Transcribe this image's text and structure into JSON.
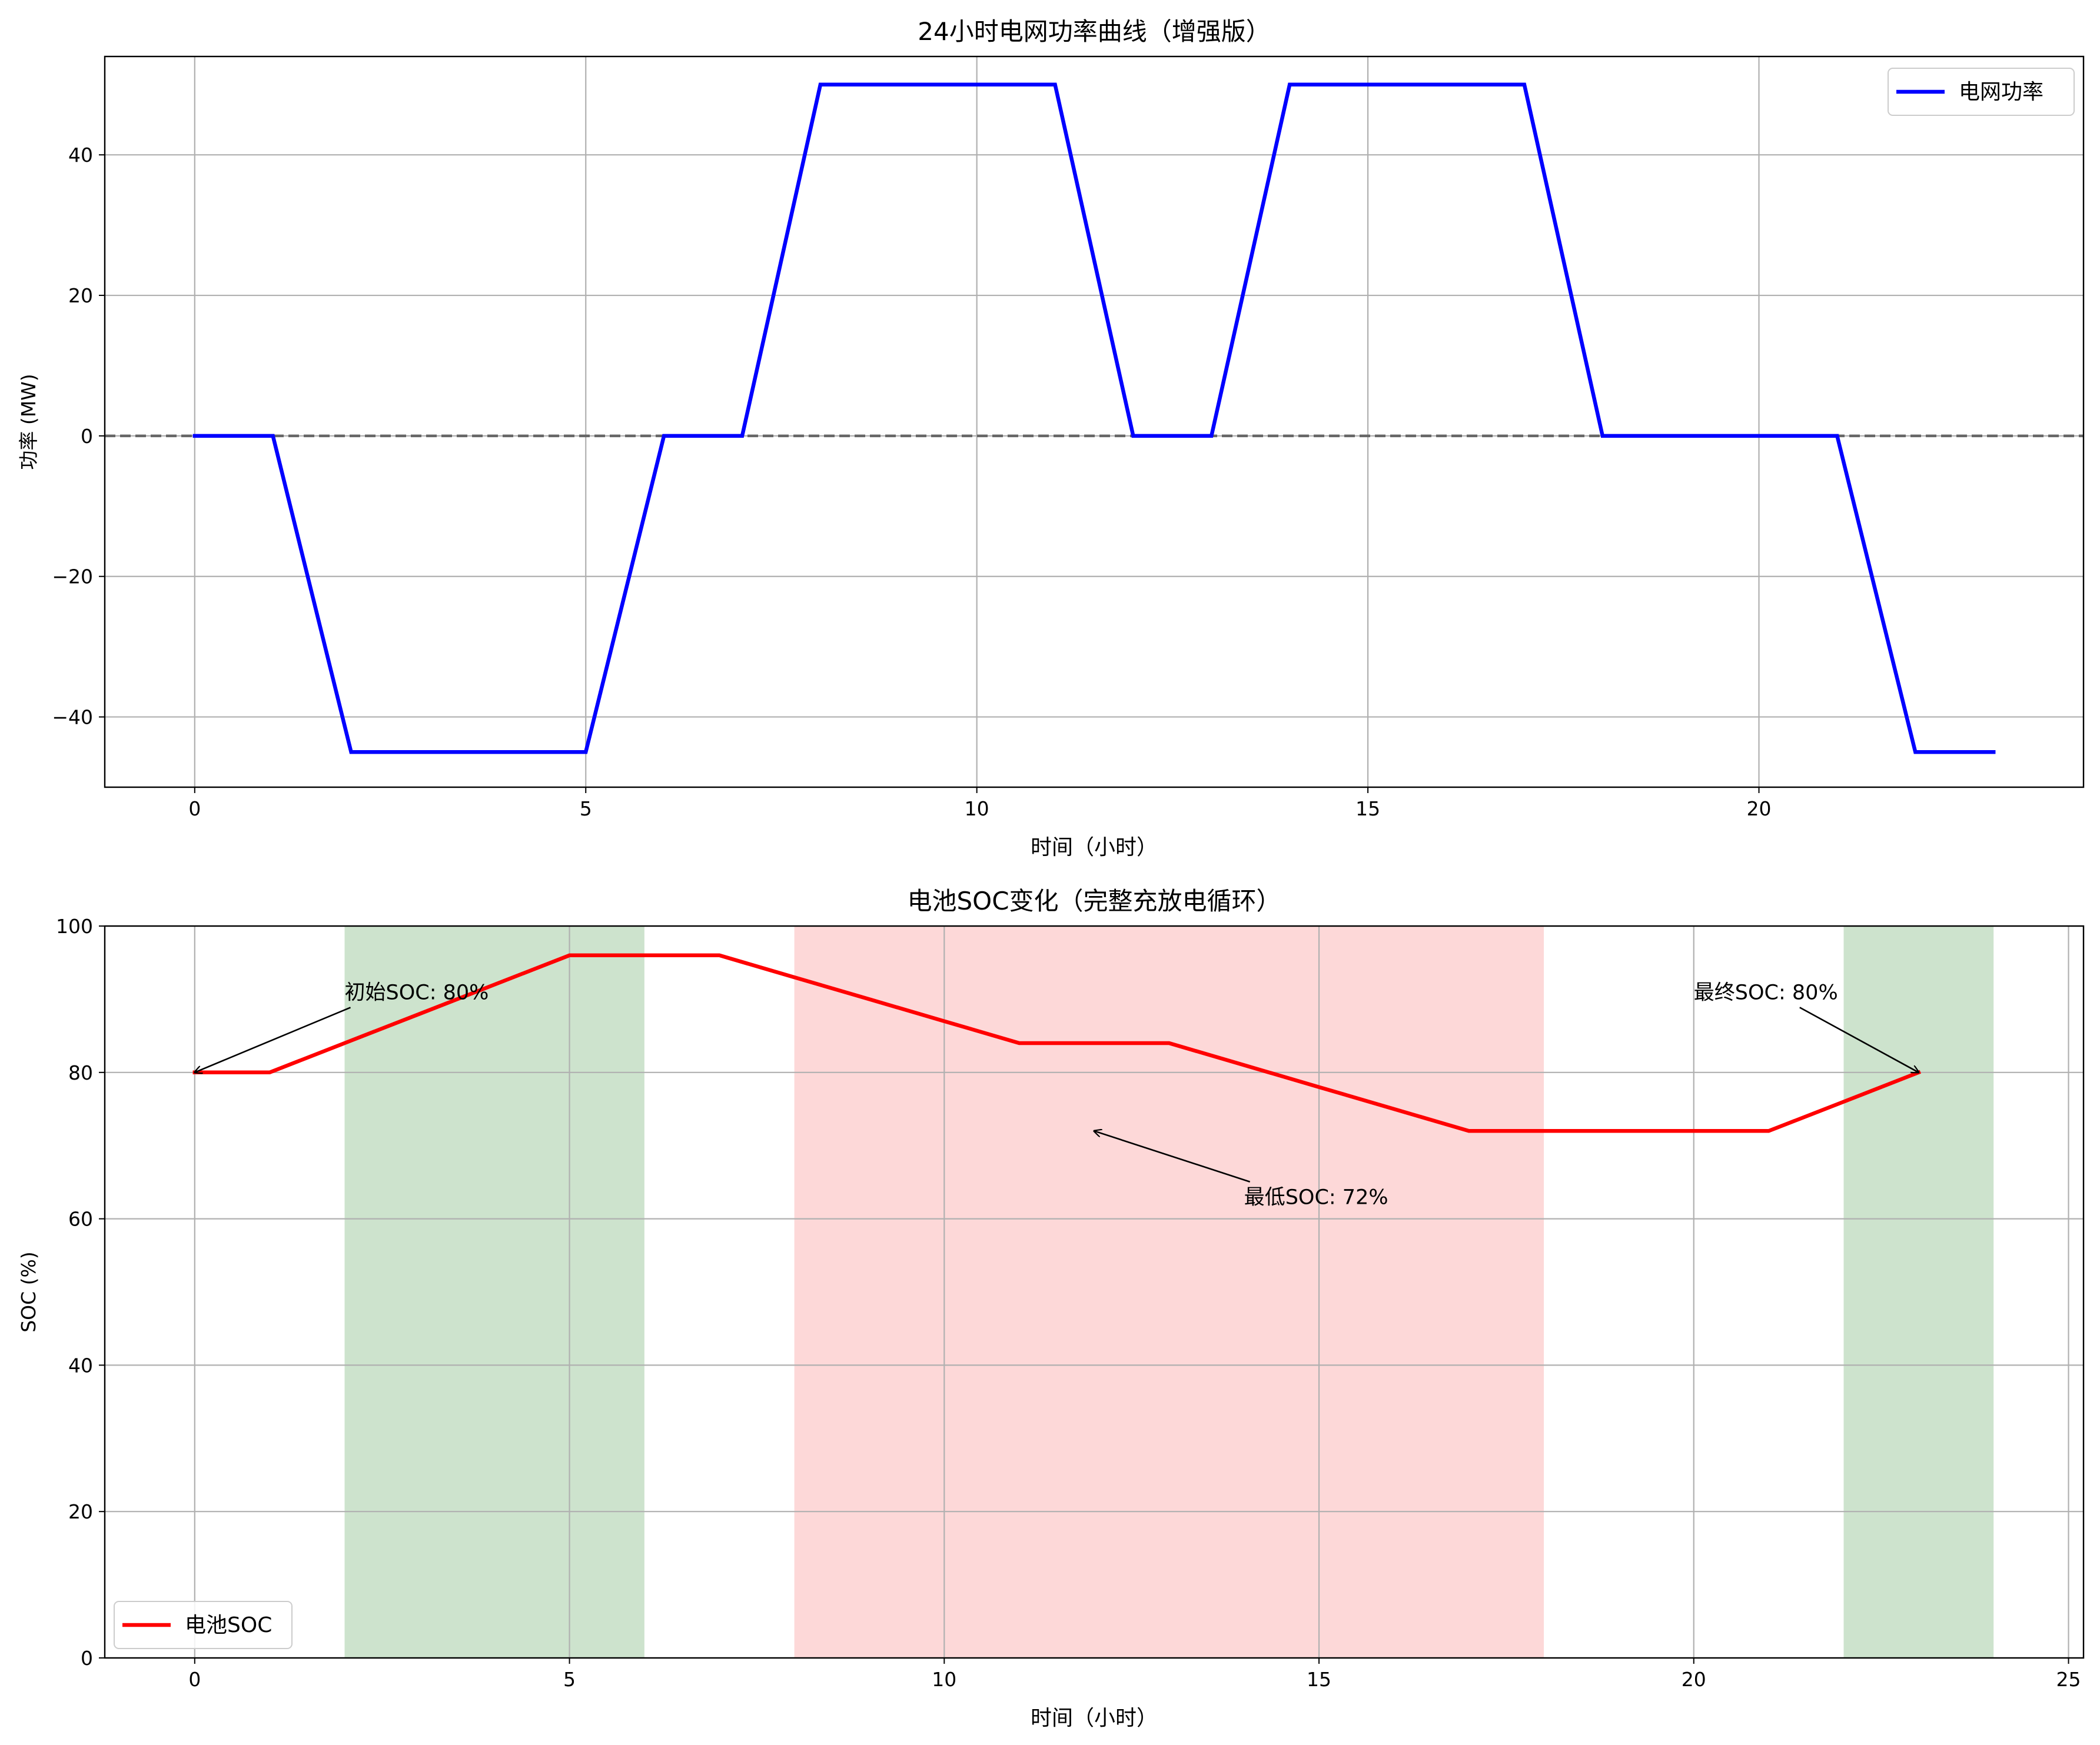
{
  "chart_data": [
    {
      "type": "line",
      "title": "24小时电网功率曲线（增强版）",
      "xlabel": "时间（小时）",
      "ylabel": "功率 (MW)",
      "xlim": [
        -1.15,
        24.15
      ],
      "ylim": [
        -50,
        54
      ],
      "xticks": [
        0,
        5,
        10,
        15,
        20
      ],
      "yticks": [
        -40,
        -20,
        0,
        20,
        40
      ],
      "x_tick_labels": [
        "0",
        "5",
        "10",
        "15",
        "20"
      ],
      "y_tick_labels": [
        "−40",
        "−20",
        "0",
        "20",
        "40"
      ],
      "grid": true,
      "legend_position": "top-right",
      "reference_line": {
        "y": 0,
        "style": "dashed",
        "color": "#666666"
      },
      "series": [
        {
          "name": "电网功率",
          "color": "#0000ff",
          "x": [
            0,
            1,
            2,
            3,
            4,
            5,
            6,
            7,
            8,
            9,
            10,
            11,
            12,
            13,
            14,
            15,
            16,
            17,
            18,
            19,
            20,
            21,
            22,
            23
          ],
          "values": [
            0,
            0,
            -45,
            -45,
            -45,
            -45,
            0,
            0,
            50,
            50,
            50,
            50,
            0,
            0,
            50,
            50,
            50,
            50,
            0,
            0,
            0,
            0,
            -45,
            -45
          ]
        }
      ]
    },
    {
      "type": "line",
      "title": "电池SOC变化（完整充放电循环）",
      "xlabel": "时间（小时）",
      "ylabel": "SOC (%)",
      "xlim": [
        -1.2,
        25.2
      ],
      "ylim": [
        0,
        100
      ],
      "xticks": [
        0,
        5,
        10,
        15,
        20,
        25
      ],
      "yticks": [
        0,
        20,
        40,
        60,
        80,
        100
      ],
      "x_tick_labels": [
        "0",
        "5",
        "10",
        "15",
        "20",
        "25"
      ],
      "y_tick_labels": [
        "0",
        "20",
        "40",
        "60",
        "80",
        "100"
      ],
      "grid": true,
      "legend_position": "lower-left",
      "shaded_regions": [
        {
          "x0": 2,
          "x1": 6,
          "color": "#2e8b2e"
        },
        {
          "x0": 8,
          "x1": 18,
          "color": "#f75c5c"
        },
        {
          "x0": 22,
          "x1": 24,
          "color": "#2e8b2e"
        }
      ],
      "series": [
        {
          "name": "电池SOC",
          "color": "#ff0000",
          "x": [
            0,
            1,
            2,
            3,
            4,
            5,
            6,
            7,
            8,
            9,
            10,
            11,
            12,
            13,
            14,
            15,
            16,
            17,
            18,
            19,
            20,
            21,
            22,
            23
          ],
          "values": [
            80,
            80,
            84,
            88,
            92,
            96,
            96,
            96,
            93,
            90,
            87,
            84,
            84,
            84,
            81,
            78,
            75,
            72,
            72,
            72,
            72,
            72,
            76,
            80
          ]
        }
      ],
      "annotations": [
        {
          "text": "初始SOC: 80%",
          "point": [
            0,
            80
          ],
          "text_at": [
            2,
            90
          ]
        },
        {
          "text": "最低SOC: 72%",
          "point": [
            12,
            72
          ],
          "text_at": [
            14,
            62
          ]
        },
        {
          "text": "最终SOC: 80%",
          "point": [
            23,
            80
          ],
          "text_at": [
            20,
            90
          ]
        }
      ]
    }
  ]
}
